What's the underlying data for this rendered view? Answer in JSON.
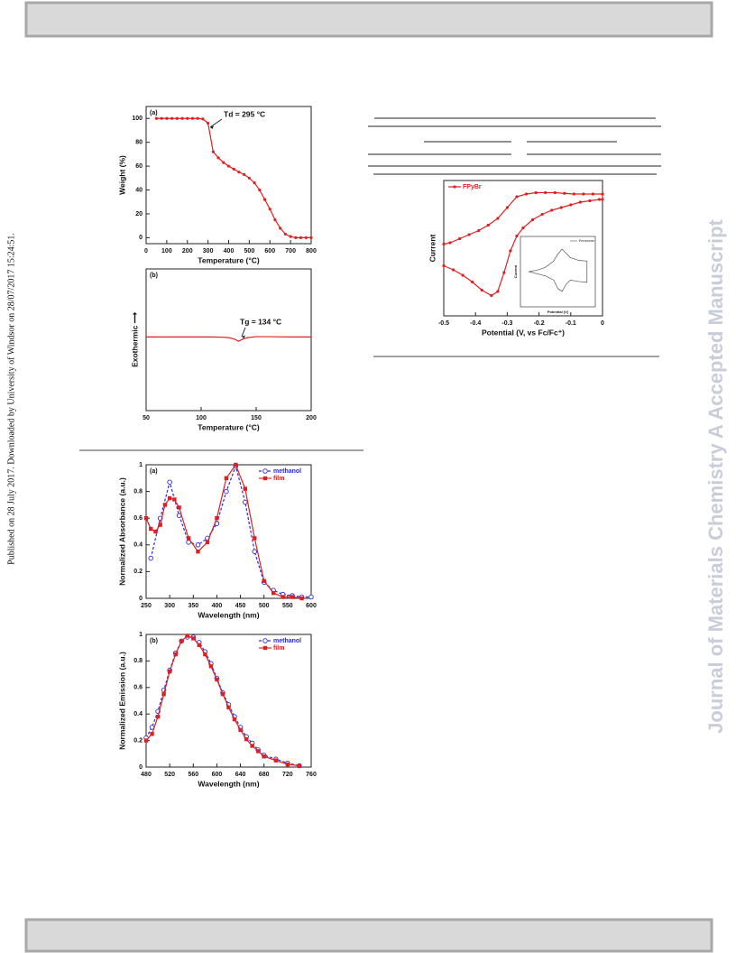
{
  "page": {
    "side_note": "Published on 28 July 2017. Downloaded by University of Windsor on 28/07/2017 15:24:51.",
    "watermark": "Journal of Materials Chemistry A Accepted Manuscript"
  },
  "chart_data": [
    {
      "type": "line",
      "panel": "(a)",
      "xlabel": "Temperature (°C)",
      "ylabel": "Weight (%)",
      "annotation": "Td = 295 °C",
      "xlim": [
        0,
        800
      ],
      "xticks": [
        0,
        100,
        200,
        300,
        400,
        500,
        600,
        700,
        800
      ],
      "ylim": [
        -5,
        110
      ],
      "yticks": [
        0,
        20,
        40,
        60,
        80,
        100
      ],
      "series": [
        {
          "color": "#e02020",
          "marker": "circle",
          "line_style": "solid",
          "x": [
            50,
            75,
            100,
            125,
            150,
            175,
            200,
            225,
            250,
            275,
            300,
            325,
            350,
            375,
            400,
            425,
            450,
            475,
            500,
            525,
            550,
            575,
            600,
            625,
            650,
            675,
            700,
            725,
            750,
            775,
            800
          ],
          "values": [
            100,
            100,
            100,
            100,
            100,
            100,
            100,
            100,
            100,
            99.5,
            96,
            72,
            67,
            63,
            60,
            57.5,
            55,
            53,
            50,
            46,
            40,
            32,
            24,
            15,
            8,
            3,
            1,
            0,
            0,
            0,
            0
          ]
        }
      ]
    },
    {
      "type": "line",
      "panel": "(b)",
      "xlabel": "Temperature (°C)",
      "ylabel": "Exothermic ⟶",
      "annotation": "Tg = 134 °C",
      "xlim": [
        50,
        200
      ],
      "xticks": [
        50,
        100,
        150,
        200
      ],
      "ylim": [
        0,
        10
      ],
      "series": [
        {
          "color": "#e02020",
          "marker": null,
          "line_style": "solid",
          "x": [
            50,
            60,
            70,
            80,
            90,
            100,
            110,
            120,
            125,
            130,
            134,
            138,
            142,
            150,
            160,
            170,
            180,
            190,
            200
          ],
          "values": [
            5.2,
            5.2,
            5.2,
            5.2,
            5.2,
            5.2,
            5.2,
            5.18,
            5.15,
            5.05,
            4.9,
            5.05,
            5.15,
            5.22,
            5.22,
            5.21,
            5.2,
            5.2,
            5.2
          ]
        }
      ]
    },
    {
      "type": "line",
      "panel": "(a)",
      "xlabel": "Wavelength (nm)",
      "ylabel": "Normalized Absorbance (a.u.)",
      "legend": "upper right",
      "xlim": [
        250,
        600
      ],
      "xticks": [
        250,
        300,
        350,
        400,
        450,
        500,
        550,
        600
      ],
      "ylim": [
        0,
        1
      ],
      "yticks": [
        0,
        0.2,
        0.4,
        0.6,
        0.8,
        1
      ],
      "series": [
        {
          "name": "methanol",
          "color": "#2a2ae0",
          "marker": "open-circle",
          "line_style": "dashed",
          "x": [
            260,
            280,
            300,
            320,
            340,
            360,
            380,
            400,
            420,
            440,
            460,
            480,
            500,
            520,
            540,
            560,
            580,
            600
          ],
          "values": [
            0.3,
            0.6,
            0.87,
            0.62,
            0.42,
            0.4,
            0.45,
            0.56,
            0.8,
            0.99,
            0.72,
            0.35,
            0.12,
            0.06,
            0.03,
            0.02,
            0.01,
            0.01
          ]
        },
        {
          "name": "film",
          "color": "#e02020",
          "marker": "square",
          "line_style": "solid",
          "x": [
            250,
            260,
            270,
            280,
            290,
            300,
            310,
            320,
            340,
            360,
            380,
            400,
            420,
            440,
            460,
            480,
            500,
            520,
            540,
            560,
            580
          ],
          "values": [
            0.6,
            0.52,
            0.5,
            0.55,
            0.7,
            0.75,
            0.74,
            0.68,
            0.45,
            0.35,
            0.42,
            0.6,
            0.9,
            1,
            0.82,
            0.45,
            0.13,
            0.04,
            0.01,
            0.01,
            0
          ]
        }
      ]
    },
    {
      "type": "line",
      "panel": "(b)",
      "xlabel": "Wavelength (nm)",
      "ylabel": "Normalized Emission (a.u.)",
      "legend": "upper right",
      "xlim": [
        480,
        760
      ],
      "xticks": [
        480,
        520,
        560,
        600,
        640,
        680,
        720,
        760
      ],
      "ylim": [
        0,
        1
      ],
      "yticks": [
        0,
        0.2,
        0.4,
        0.6,
        0.8,
        1
      ],
      "series": [
        {
          "name": "methanol",
          "color": "#2a2ae0",
          "marker": "open-circle",
          "line_style": "dashed",
          "x": [
            480,
            490,
            500,
            510,
            520,
            530,
            540,
            550,
            560,
            570,
            580,
            590,
            600,
            610,
            620,
            630,
            640,
            650,
            660,
            670,
            680,
            700,
            720,
            740
          ],
          "values": [
            0.22,
            0.3,
            0.42,
            0.58,
            0.73,
            0.86,
            0.95,
            0.98,
            0.98,
            0.94,
            0.87,
            0.78,
            0.67,
            0.56,
            0.47,
            0.38,
            0.3,
            0.23,
            0.18,
            0.13,
            0.09,
            0.06,
            0.03,
            0.01
          ]
        },
        {
          "name": "film",
          "color": "#e02020",
          "marker": "square",
          "line_style": "solid",
          "x": [
            480,
            490,
            500,
            510,
            520,
            530,
            540,
            550,
            560,
            570,
            580,
            590,
            600,
            610,
            620,
            630,
            640,
            650,
            660,
            670,
            680,
            700,
            720,
            740
          ],
          "values": [
            0.2,
            0.25,
            0.38,
            0.55,
            0.72,
            0.85,
            0.95,
            0.99,
            0.97,
            0.92,
            0.85,
            0.76,
            0.66,
            0.55,
            0.45,
            0.36,
            0.28,
            0.21,
            0.16,
            0.12,
            0.08,
            0.05,
            0.02,
            0.01
          ]
        }
      ]
    },
    {
      "type": "line",
      "xlabel": "Potential (V, vs Fc/Fc⁺)",
      "ylabel": "Current",
      "legend": "upper left",
      "xlim": [
        -0.5,
        0
      ],
      "xticks": [
        -0.5,
        -0.4,
        -0.3,
        -0.2,
        -0.1,
        0
      ],
      "ylim": [
        0,
        10
      ],
      "series": [
        {
          "name": "FPyBr",
          "color": "#e02020",
          "marker": "circle",
          "line_style": "solid",
          "x": [
            -0.5,
            -0.47,
            -0.44,
            -0.41,
            -0.38,
            -0.35,
            -0.33,
            -0.31,
            -0.29,
            -0.27,
            -0.25,
            -0.22,
            -0.19,
            -0.16,
            -0.13,
            -0.1,
            -0.07,
            -0.04,
            -0.01,
            0,
            0,
            -0.03,
            -0.06,
            -0.09,
            -0.12,
            -0.15,
            -0.18,
            -0.21,
            -0.24,
            -0.27,
            -0.3,
            -0.33,
            -0.36,
            -0.39,
            -0.42,
            -0.45,
            -0.48,
            -0.5
          ],
          "values": [
            3.7,
            3.4,
            3,
            2.5,
            1.9,
            1.5,
            1.8,
            3.2,
            4.8,
            5.9,
            6.5,
            7.1,
            7.5,
            7.8,
            8,
            8.2,
            8.4,
            8.5,
            8.6,
            8.6,
            9,
            9,
            9,
            9,
            9.05,
            9.1,
            9.1,
            9.1,
            9,
            8.8,
            8,
            7.2,
            6.7,
            6.3,
            6,
            5.7,
            5.4,
            5.3
          ]
        }
      ]
    },
    {
      "type": "line",
      "xlabel": "Potential (V)",
      "ylabel": "Current",
      "legend": "upper right",
      "xlim": [
        -0.1,
        0.8
      ],
      "ylim": [
        0,
        10
      ],
      "series": [
        {
          "name": "Ferrocene",
          "color": "#555555",
          "marker": null,
          "line_style": "solid",
          "x": [
            0,
            0.1,
            0.2,
            0.3,
            0.35,
            0.4,
            0.45,
            0.5,
            0.6,
            0.7,
            0.7,
            0.6,
            0.5,
            0.45,
            0.4,
            0.35,
            0.3,
            0.2,
            0.1,
            0
          ],
          "values": [
            5,
            5.2,
            5.6,
            6.5,
            7.5,
            8.2,
            7.6,
            7,
            6.6,
            6.5,
            3.5,
            3.6,
            3.8,
            3.2,
            2.2,
            2.6,
            3.8,
            4.4,
            4.7,
            5
          ]
        }
      ]
    }
  ]
}
